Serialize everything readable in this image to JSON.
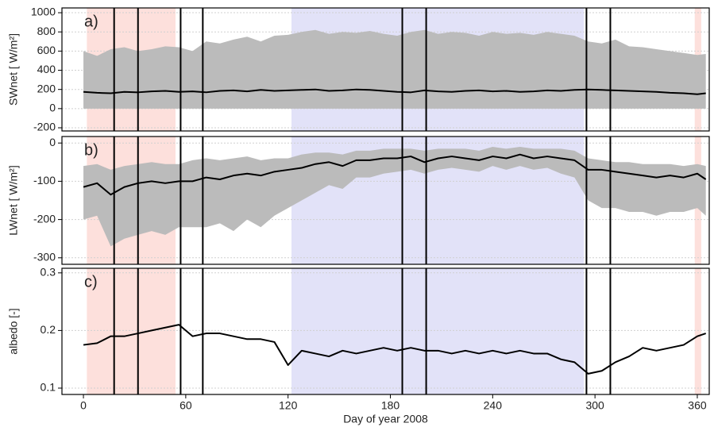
{
  "chart_data": [
    {
      "type": "line",
      "panel_label": "a)",
      "y_label": "SWnet  [ W/m²]",
      "xlim": [
        -12.6,
        367
      ],
      "ylim": [
        -233,
        1050
      ],
      "yticks": [
        -200,
        0,
        200,
        400,
        600,
        800,
        1000
      ],
      "grid": true,
      "shaded_spans": [
        {
          "start": 2,
          "end": 54,
          "color": "#fde0dc"
        },
        {
          "start": 358.5,
          "end": 362.3,
          "color": "#fde0dc"
        },
        {
          "start": 122,
          "end": 293.5,
          "color": "#e2e2f8"
        }
      ],
      "vlines": [
        18,
        32,
        57,
        70,
        187,
        201,
        295,
        309
      ],
      "x": [
        0,
        8,
        16,
        24,
        32,
        40,
        48,
        56,
        64,
        72,
        80,
        88,
        96,
        104,
        112,
        120,
        128,
        136,
        144,
        152,
        160,
        168,
        176,
        184,
        192,
        200,
        208,
        216,
        224,
        232,
        240,
        248,
        256,
        264,
        272,
        280,
        288,
        296,
        304,
        312,
        320,
        328,
        336,
        344,
        352,
        360,
        365
      ],
      "band": {
        "color": "#bbbbbb",
        "upper": [
          600,
          550,
          620,
          640,
          600,
          620,
          650,
          640,
          600,
          700,
          680,
          720,
          750,
          700,
          760,
          770,
          800,
          820,
          780,
          800,
          790,
          810,
          780,
          760,
          800,
          820,
          780,
          800,
          790,
          760,
          800,
          780,
          790,
          770,
          800,
          780,
          760,
          700,
          680,
          720,
          650,
          640,
          620,
          600,
          580,
          560,
          570
        ],
        "lower": [
          0,
          0,
          0,
          0,
          0,
          0,
          0,
          0,
          0,
          0,
          0,
          0,
          0,
          0,
          0,
          0,
          0,
          0,
          0,
          0,
          0,
          0,
          0,
          0,
          0,
          0,
          0,
          0,
          0,
          0,
          0,
          0,
          0,
          0,
          0,
          0,
          0,
          0,
          0,
          0,
          0,
          0,
          0,
          0,
          0,
          0,
          0
        ]
      },
      "series": [
        {
          "color": "#000000",
          "values": [
            175,
            165,
            160,
            175,
            170,
            180,
            185,
            175,
            180,
            170,
            185,
            190,
            180,
            195,
            185,
            190,
            195,
            200,
            185,
            190,
            200,
            195,
            185,
            175,
            170,
            190,
            180,
            175,
            185,
            190,
            180,
            185,
            175,
            180,
            190,
            185,
            195,
            200,
            195,
            190,
            185,
            180,
            175,
            165,
            160,
            150,
            160
          ]
        }
      ]
    },
    {
      "type": "line",
      "panel_label": "b)",
      "y_label": "LWnet  [ W/m²]",
      "xlim": [
        -12.6,
        367
      ],
      "ylim": [
        -317,
        17
      ],
      "yticks": [
        0,
        -100,
        -200,
        -300
      ],
      "grid": true,
      "shaded_spans": [
        {
          "start": 2,
          "end": 54,
          "color": "#fde0dc"
        },
        {
          "start": 358.5,
          "end": 362.3,
          "color": "#fde0dc"
        },
        {
          "start": 122,
          "end": 293.5,
          "color": "#e2e2f8"
        }
      ],
      "vlines": [
        18,
        32,
        57,
        70,
        187,
        201,
        295,
        309
      ],
      "x": [
        0,
        8,
        16,
        24,
        32,
        40,
        48,
        56,
        64,
        72,
        80,
        88,
        96,
        104,
        112,
        120,
        128,
        136,
        144,
        152,
        160,
        168,
        176,
        184,
        192,
        200,
        208,
        216,
        224,
        232,
        240,
        248,
        256,
        264,
        272,
        280,
        288,
        296,
        304,
        312,
        320,
        328,
        336,
        344,
        352,
        360,
        365
      ],
      "band": {
        "color": "#bbbbbb",
        "upper": [
          -60,
          -55,
          -70,
          -60,
          -55,
          -50,
          -55,
          -55,
          -45,
          -40,
          -45,
          -40,
          -35,
          -45,
          -40,
          -40,
          -30,
          -25,
          -25,
          -30,
          -20,
          -20,
          -15,
          -15,
          -15,
          -20,
          -15,
          -15,
          -15,
          -20,
          -10,
          -15,
          -10,
          -15,
          -15,
          -15,
          -20,
          -40,
          -45,
          -50,
          -50,
          -55,
          -55,
          -55,
          -60,
          -55,
          -60
        ],
        "lower": [
          -200,
          -190,
          -270,
          -250,
          -240,
          -230,
          -240,
          -220,
          -220,
          -220,
          -210,
          -230,
          -200,
          -220,
          -190,
          -170,
          -150,
          -130,
          -110,
          -120,
          -90,
          -90,
          -80,
          -75,
          -70,
          -80,
          -70,
          -65,
          -70,
          -75,
          -60,
          -70,
          -60,
          -70,
          -65,
          -80,
          -90,
          -150,
          -170,
          -170,
          -180,
          -180,
          -190,
          -180,
          -180,
          -170,
          -190
        ]
      },
      "series": [
        {
          "color": "#000000",
          "values": [
            -115,
            -105,
            -135,
            -115,
            -105,
            -100,
            -105,
            -100,
            -100,
            -90,
            -95,
            -85,
            -80,
            -85,
            -75,
            -70,
            -65,
            -55,
            -50,
            -60,
            -45,
            -45,
            -40,
            -40,
            -35,
            -50,
            -40,
            -35,
            -40,
            -45,
            -35,
            -40,
            -30,
            -40,
            -35,
            -40,
            -45,
            -70,
            -70,
            -75,
            -80,
            -85,
            -90,
            -85,
            -90,
            -80,
            -95
          ]
        }
      ]
    },
    {
      "type": "line",
      "panel_label": "c)",
      "y_label": "albedo [-]",
      "x_label": "Day of year 2008",
      "xlim": [
        -12.6,
        367
      ],
      "ylim": [
        0.089,
        0.308
      ],
      "yticks": [
        0.1,
        0.2,
        0.3
      ],
      "grid": true,
      "xticks": [
        0,
        60,
        120,
        180,
        240,
        300,
        360
      ],
      "shaded_spans": [
        {
          "start": 2,
          "end": 54,
          "color": "#fde0dc"
        },
        {
          "start": 358.5,
          "end": 362.3,
          "color": "#fde0dc"
        },
        {
          "start": 122,
          "end": 293.5,
          "color": "#e2e2f8"
        }
      ],
      "vlines": [
        18,
        32,
        57,
        70,
        187,
        201,
        295,
        309
      ],
      "x": [
        0,
        8,
        16,
        24,
        32,
        40,
        48,
        56,
        64,
        72,
        80,
        88,
        96,
        104,
        112,
        120,
        128,
        136,
        144,
        152,
        160,
        168,
        176,
        184,
        192,
        200,
        208,
        216,
        224,
        232,
        240,
        248,
        256,
        264,
        272,
        280,
        288,
        296,
        304,
        312,
        320,
        328,
        336,
        344,
        352,
        360,
        365
      ],
      "series": [
        {
          "color": "#000000",
          "values": [
            0.175,
            0.178,
            0.19,
            0.19,
            0.195,
            0.2,
            0.205,
            0.21,
            0.19,
            0.195,
            0.195,
            0.19,
            0.185,
            0.185,
            0.18,
            0.14,
            0.165,
            0.16,
            0.155,
            0.165,
            0.16,
            0.165,
            0.17,
            0.165,
            0.17,
            0.165,
            0.165,
            0.16,
            0.165,
            0.16,
            0.165,
            0.16,
            0.165,
            0.16,
            0.16,
            0.15,
            0.145,
            0.125,
            0.13,
            0.145,
            0.155,
            0.17,
            0.165,
            0.17,
            0.175,
            0.19,
            0.195
          ]
        }
      ]
    }
  ]
}
